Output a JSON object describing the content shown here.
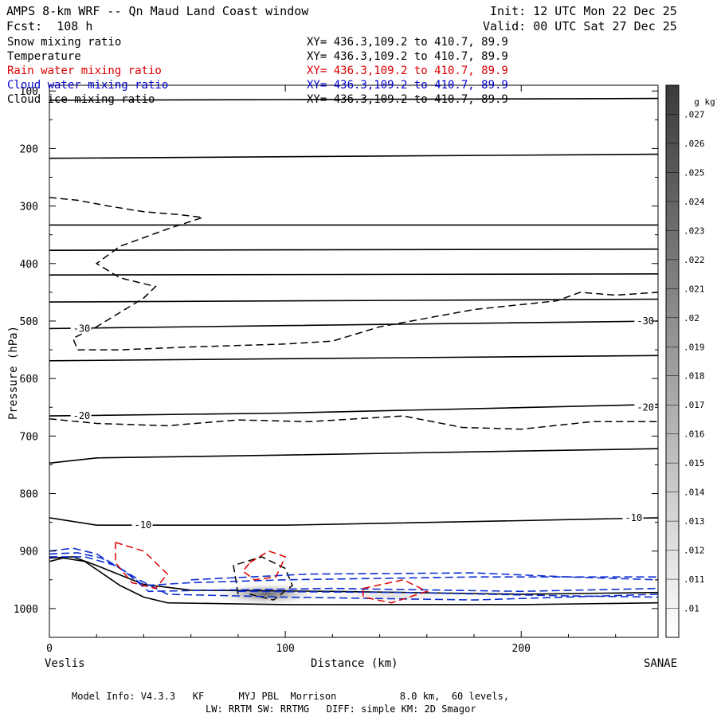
{
  "header": {
    "title": "AMPS 8-km WRF -- Qn Maud Land Coast window",
    "fcst": "Fcst:  108 h",
    "init": "Init: 12 UTC Mon 22 Dec 25",
    "valid": "Valid: 00 UTC Sat 27 Dec 25"
  },
  "legend": [
    {
      "name": "Snow mixing ratio",
      "xy": "XY= 436.3,109.2 to 410.7, 89.9",
      "color": "#000000"
    },
    {
      "name": "Temperature",
      "xy": "XY= 436.3,109.2 to 410.7, 89.9",
      "color": "#000000"
    },
    {
      "name": "Rain water mixing ratio",
      "xy": "XY= 436.3,109.2 to 410.7, 89.9",
      "color": "#dd0000"
    },
    {
      "name": "Cloud water mixing ratio",
      "xy": "XY= 436.3,109.2 to 410.7, 89.9",
      "color": "#0000cc"
    },
    {
      "name": "Cloud ice mixing ratio",
      "xy": "XY= 436.3,109.2 to 410.7, 89.9",
      "color": "#000000"
    }
  ],
  "footer": {
    "line1": "Model Info: V4.3.3   KF      MYJ PBL  Morrison           8.0 km,  60 levels,",
    "line2": "LW: RRTM SW: RRTMG   DIFF: simple KM: 2D Smagor"
  },
  "chart_data": {
    "type": "cross-section",
    "xlabel": "Distance (km)",
    "ylabel": "Pressure (hPa)",
    "xlim": [
      0,
      258
    ],
    "ylim": [
      1050,
      90
    ],
    "x_ticks": [
      0,
      100,
      200
    ],
    "x_tick_labels": [
      "0",
      "100",
      "200"
    ],
    "y_ticks": [
      100,
      200,
      300,
      400,
      500,
      600,
      700,
      800,
      900,
      1000
    ],
    "y_tick_labels": [
      "100",
      "200",
      "300",
      "400",
      "500",
      "600",
      "700",
      "800",
      "900",
      "1000"
    ],
    "left_endpoint": "Veslis",
    "right_endpoint": "SANAE",
    "colorbar": {
      "unit": "g kg",
      "unit_exp": "-1",
      "labels": [
        ".027",
        ".026",
        ".025",
        ".024",
        ".023",
        ".022",
        ".021",
        ".02",
        ".019",
        ".018",
        ".017",
        ".016",
        ".015",
        ".014",
        ".013",
        ".012",
        ".011",
        ".01"
      ]
    },
    "temperature_labels": [
      {
        "text": "-30",
        "x": 10,
        "p": 513
      },
      {
        "text": "-30",
        "x": 249,
        "p": 500
      },
      {
        "text": "-20",
        "x": 10,
        "p": 665
      },
      {
        "text": "-20",
        "x": 249,
        "p": 650
      },
      {
        "text": "-10",
        "x": 36,
        "p": 855
      },
      {
        "text": "-10",
        "x": 244,
        "p": 842
      }
    ],
    "solid_lines": [
      [
        [
          0,
          116
        ],
        [
          100,
          115
        ],
        [
          258,
          113
        ]
      ],
      [
        [
          0,
          217
        ],
        [
          258,
          210
        ]
      ],
      [
        [
          0,
          333
        ],
        [
          258,
          333
        ]
      ],
      [
        [
          0,
          377
        ],
        [
          258,
          375
        ]
      ],
      [
        [
          0,
          420
        ],
        [
          258,
          418
        ]
      ],
      [
        [
          0,
          467
        ],
        [
          258,
          462
        ]
      ],
      [
        [
          0,
          513
        ],
        [
          100,
          508
        ],
        [
          258,
          500
        ]
      ],
      [
        [
          0,
          569
        ],
        [
          258,
          560
        ]
      ],
      [
        [
          0,
          665
        ],
        [
          100,
          660
        ],
        [
          258,
          645
        ]
      ],
      [
        [
          0,
          747
        ],
        [
          20,
          738
        ],
        [
          100,
          733
        ],
        [
          258,
          722
        ]
      ],
      [
        [
          0,
          842
        ],
        [
          20,
          855
        ],
        [
          100,
          855
        ],
        [
          200,
          847
        ],
        [
          258,
          842
        ]
      ],
      [
        [
          0,
          918
        ],
        [
          6,
          912
        ],
        [
          15,
          918
        ],
        [
          30,
          960
        ],
        [
          40,
          980
        ],
        [
          50,
          990
        ],
        [
          100,
          993
        ],
        [
          200,
          993
        ],
        [
          258,
          990
        ]
      ],
      [
        [
          0,
          912
        ],
        [
          10,
          910
        ],
        [
          20,
          925
        ],
        [
          40,
          958
        ],
        [
          60,
          968
        ],
        [
          120,
          970
        ],
        [
          200,
          975
        ],
        [
          258,
          972
        ]
      ]
    ],
    "dashed_black": [
      [
        [
          0,
          285
        ],
        [
          12,
          290
        ],
        [
          25,
          300
        ],
        [
          40,
          310
        ],
        [
          55,
          315
        ],
        [
          65,
          320
        ],
        [
          50,
          340
        ],
        [
          30,
          370
        ],
        [
          20,
          400
        ],
        [
          30,
          425
        ],
        [
          45,
          440
        ],
        [
          40,
          460
        ],
        [
          30,
          485
        ],
        [
          20,
          510
        ],
        [
          10,
          530
        ],
        [
          12,
          550
        ],
        [
          30,
          550
        ],
        [
          60,
          545
        ],
        [
          100,
          540
        ],
        [
          120,
          535
        ],
        [
          140,
          510
        ],
        [
          180,
          480
        ],
        [
          215,
          465
        ],
        [
          225,
          450
        ],
        [
          240,
          455
        ],
        [
          258,
          450
        ]
      ],
      [
        [
          0,
          670
        ],
        [
          20,
          678
        ],
        [
          50,
          682
        ],
        [
          80,
          672
        ],
        [
          110,
          675
        ],
        [
          150,
          665
        ],
        [
          175,
          685
        ],
        [
          200,
          688
        ],
        [
          230,
          675
        ],
        [
          258,
          675
        ]
      ],
      [
        [
          80,
          975
        ],
        [
          78,
          925
        ],
        [
          90,
          910
        ],
        [
          100,
          930
        ],
        [
          103,
          960
        ],
        [
          95,
          985
        ],
        [
          85,
          975
        ]
      ]
    ],
    "dashed_red": [
      [
        [
          28,
          885
        ],
        [
          40,
          900
        ],
        [
          50,
          940
        ],
        [
          45,
          965
        ],
        [
          35,
          955
        ],
        [
          28,
          920
        ],
        [
          28,
          885
        ]
      ],
      [
        [
          85,
          920
        ],
        [
          93,
          900
        ],
        [
          100,
          910
        ],
        [
          96,
          945
        ],
        [
          87,
          950
        ],
        [
          82,
          935
        ],
        [
          85,
          920
        ]
      ],
      [
        [
          133,
          965
        ],
        [
          150,
          950
        ],
        [
          160,
          970
        ],
        [
          145,
          990
        ],
        [
          133,
          980
        ],
        [
          133,
          965
        ]
      ]
    ],
    "dashed_blue": [
      [
        [
          0,
          900
        ],
        [
          10,
          895
        ],
        [
          20,
          905
        ],
        [
          30,
          930
        ],
        [
          40,
          960
        ],
        [
          60,
          955
        ],
        [
          100,
          950
        ],
        [
          180,
          945
        ],
        [
          258,
          945
        ]
      ],
      [
        [
          0,
          905
        ],
        [
          12,
          903
        ],
        [
          22,
          912
        ],
        [
          32,
          935
        ],
        [
          42,
          970
        ],
        [
          70,
          968
        ],
        [
          120,
          965
        ],
        [
          200,
          970
        ],
        [
          258,
          965
        ]
      ],
      [
        [
          0,
          910
        ],
        [
          15,
          910
        ],
        [
          28,
          925
        ],
        [
          38,
          950
        ],
        [
          50,
          975
        ],
        [
          100,
          980
        ],
        [
          180,
          985
        ],
        [
          258,
          975
        ]
      ],
      [
        [
          60,
          950
        ],
        [
          110,
          940
        ],
        [
          180,
          938
        ],
        [
          220,
          945
        ],
        [
          258,
          950
        ]
      ],
      [
        [
          80,
          970
        ],
        [
          150,
          972
        ],
        [
          220,
          978
        ],
        [
          258,
          980
        ]
      ]
    ],
    "shading": [
      {
        "x": 92,
        "p": 975,
        "rx": 25,
        "rp": 22,
        "value": 0.024
      },
      {
        "x": 145,
        "p": 978,
        "rx": 40,
        "rp": 15,
        "value": 0.013
      }
    ]
  }
}
